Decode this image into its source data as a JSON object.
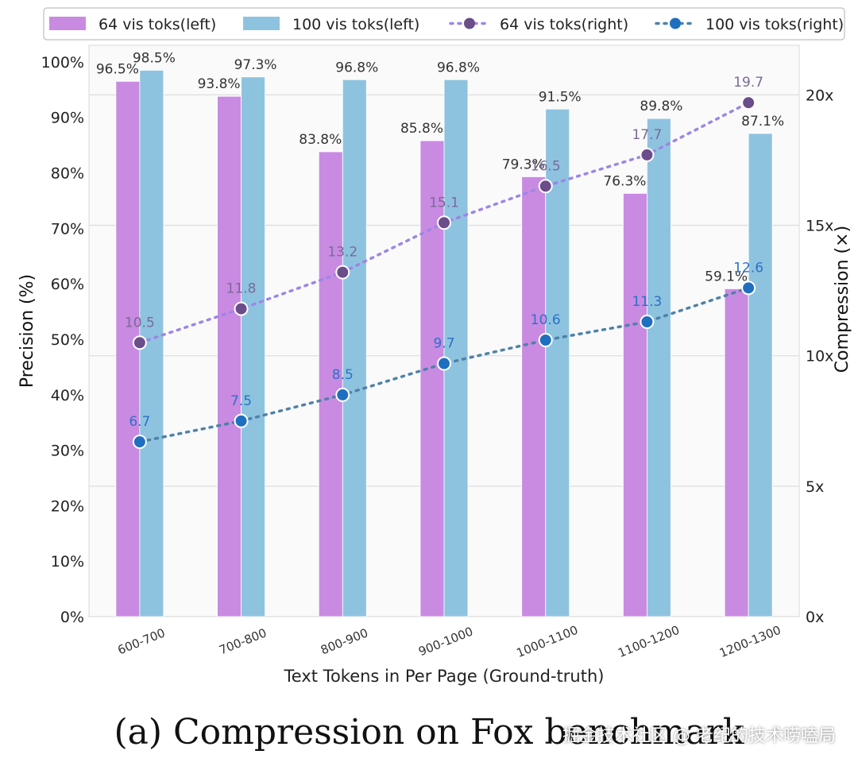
{
  "chart_data": {
    "type": "bar",
    "categories": [
      "600-700",
      "700-800",
      "800-900",
      "900-1000",
      "1000-1100",
      "1100-1200",
      "1200-1300"
    ],
    "series": [
      {
        "name": "64 vis toks(left)",
        "kind": "bar",
        "axis": "left",
        "color": "#c98ae2",
        "values": [
          96.5,
          93.8,
          83.8,
          85.8,
          79.3,
          76.3,
          59.1
        ],
        "labels": [
          "96.5%",
          "93.8%",
          "83.8%",
          "85.8%",
          "79.3%",
          "76.3%",
          "59.1%"
        ]
      },
      {
        "name": "100 vis toks(left)",
        "kind": "bar",
        "axis": "left",
        "color": "#8ec3e0",
        "values": [
          98.5,
          97.3,
          96.8,
          96.8,
          91.5,
          89.8,
          87.1
        ],
        "labels": [
          "98.5%",
          "97.3%",
          "96.8%",
          "96.8%",
          "91.5%",
          "89.8%",
          "87.1%"
        ]
      },
      {
        "name": "64 vis toks(right)",
        "kind": "line",
        "axis": "right",
        "color": "#6a4d8a",
        "line_color": "#9d86e6",
        "label_color": "#7a6a98",
        "values": [
          10.5,
          11.8,
          13.2,
          15.1,
          16.5,
          17.7,
          19.7
        ],
        "labels": [
          "10.5",
          "11.8",
          "13.2",
          "15.1",
          "16.5",
          "17.7",
          "19.7"
        ]
      },
      {
        "name": "100 vis toks(right)",
        "kind": "line",
        "axis": "right",
        "color": "#1f6fc0",
        "line_color": "#4f82a8",
        "label_color": "#2a72c6",
        "values": [
          6.7,
          7.5,
          8.5,
          9.7,
          10.6,
          11.3,
          12.6
        ],
        "labels": [
          "6.7",
          "7.5",
          "8.5",
          "9.7",
          "10.6",
          "11.3",
          "12.6"
        ]
      }
    ],
    "xlabel": "Text Tokens in Per Page (Ground-truth)",
    "ylabel": "Precision (%)",
    "y2label": "Compression (×)",
    "ylim": [
      0,
      103
    ],
    "y2lim": [
      0,
      21.9
    ],
    "yticks": [
      0,
      10,
      20,
      30,
      40,
      50,
      60,
      70,
      80,
      90,
      100
    ],
    "yticklabels": [
      "0%",
      "10%",
      "20%",
      "30%",
      "40%",
      "50%",
      "60%",
      "70%",
      "80%",
      "90%",
      "100%"
    ],
    "y2ticks": [
      0,
      5,
      10,
      15,
      20
    ],
    "y2ticklabels": [
      "0x",
      "5x",
      "10x",
      "15x",
      "20x"
    ],
    "grid": true,
    "legend_position": "top"
  },
  "caption": "(a) Compression on Fox benchmark",
  "watermark": "掘金技术社区 @ 老纪的技术唠嗑局"
}
